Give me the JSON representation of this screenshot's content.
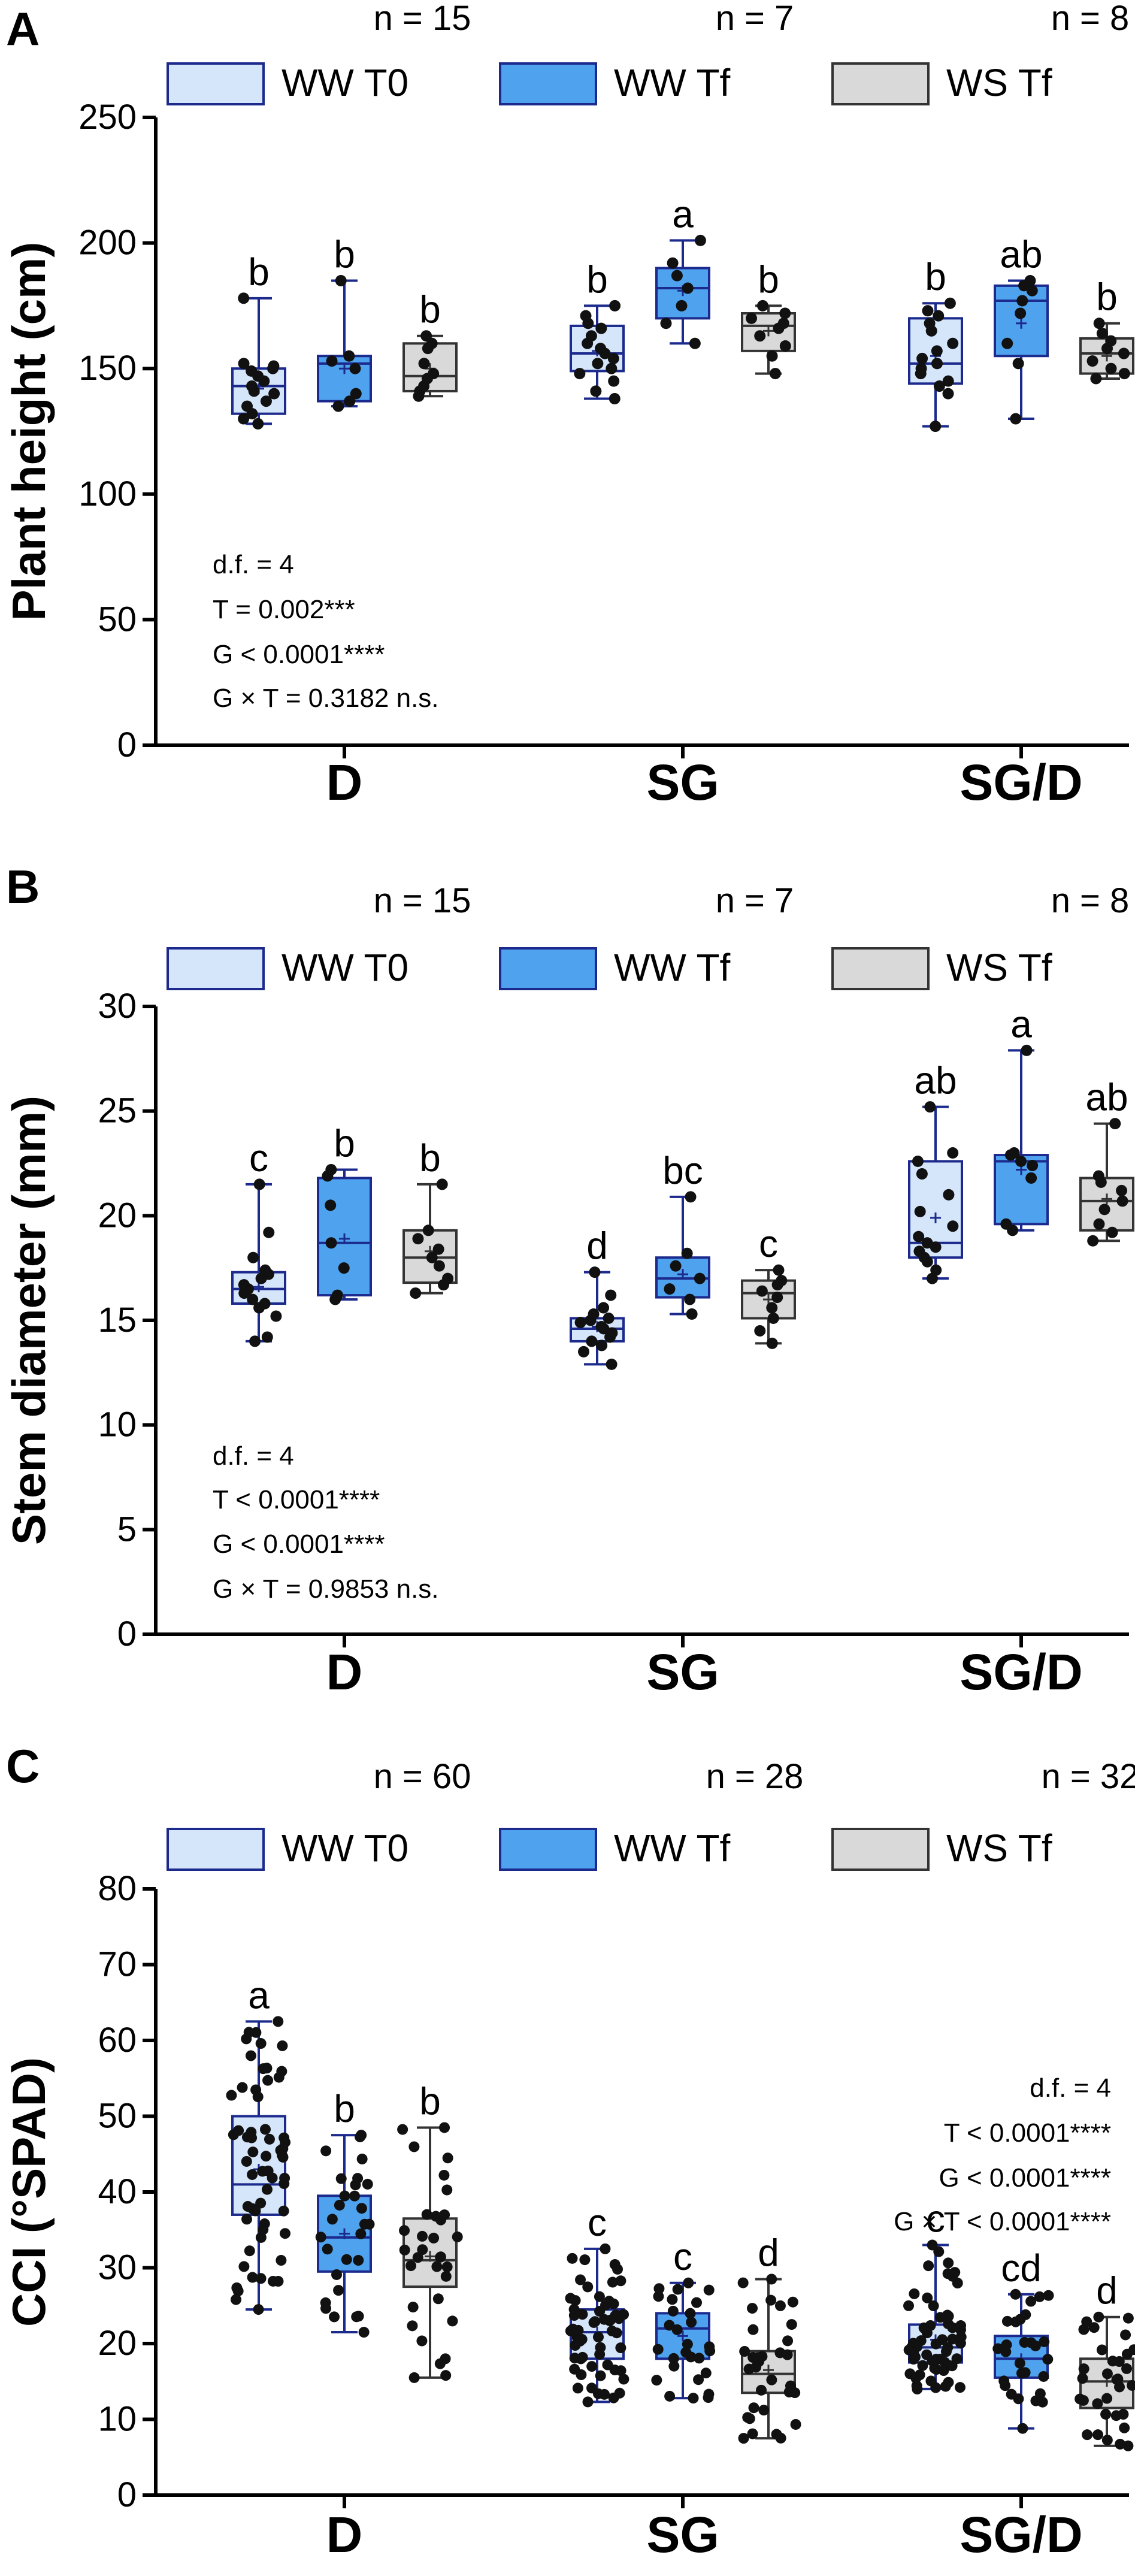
{
  "colors": {
    "ww_t0_fill": "#d6e6fa",
    "ww_tf_fill": "#4fa3ee",
    "ws_tf_fill": "#d9d9d9",
    "box_stroke_blue": "#1b2a8c",
    "box_stroke_gray": "#333333",
    "point": "#111111",
    "axis": "#000000"
  },
  "legend_labels": [
    "WW T0",
    "WW Tf",
    "WS Tf"
  ],
  "chart_data": [
    {
      "type": "box",
      "panel_label": "A",
      "ylabel": "Plant height (cm)",
      "ylim": [
        0,
        250
      ],
      "yticks": [
        0,
        50,
        100,
        150,
        200,
        250
      ],
      "categories": [
        "D",
        "SG",
        "SG/D"
      ],
      "n_labels": [
        "n = 15",
        "n = 7",
        "n = 8"
      ],
      "stats": [
        "d.f. = 4",
        "T = 0.002***",
        "G < 0.0001****",
        "G × T = 0.3182 n.s."
      ],
      "stats_align": "left",
      "series": [
        {
          "name": "WW T0",
          "boxes": [
            {
              "min": 128,
              "q1": 132,
              "median": 143,
              "q3": 150,
              "max": 178,
              "mean": 142,
              "letter": "b",
              "points": [
                128,
                130,
                132,
                135,
                137,
                140,
                141,
                143,
                145,
                147,
                149,
                150,
                151,
                152,
                178
              ]
            },
            {
              "min": 138,
              "q1": 149,
              "median": 156,
              "q3": 167,
              "max": 175,
              "mean": 157,
              "letter": "b",
              "points": [
                138,
                141,
                145,
                148,
                150,
                152,
                154,
                156,
                158,
                160,
                163,
                166,
                168,
                171,
                175
              ]
            },
            {
              "min": 127,
              "q1": 144,
              "median": 152,
              "q3": 170,
              "max": 176,
              "mean": 155,
              "letter": "b",
              "points": [
                127,
                140,
                143,
                145,
                148,
                150,
                152,
                154,
                157,
                160,
                165,
                168,
                171,
                173,
                176
              ]
            }
          ]
        },
        {
          "name": "WW Tf",
          "boxes": [
            {
              "min": 135,
              "q1": 137,
              "median": 152,
              "q3": 155,
              "max": 185,
              "mean": 150,
              "letter": "b",
              "points": [
                135,
                137,
                140,
                150,
                153,
                155,
                185
              ]
            },
            {
              "min": 160,
              "q1": 170,
              "median": 182,
              "q3": 190,
              "max": 201,
              "mean": 181,
              "letter": "a",
              "points": [
                160,
                168,
                175,
                182,
                187,
                192,
                201
              ]
            },
            {
              "min": 130,
              "q1": 155,
              "median": 177,
              "q3": 183,
              "max": 185,
              "mean": 168,
              "letter": "ab",
              "points": [
                130,
                152,
                160,
                172,
                177,
                181,
                183,
                185
              ]
            }
          ]
        },
        {
          "name": "WS Tf",
          "boxes": [
            {
              "min": 139,
              "q1": 141,
              "median": 147,
              "q3": 160,
              "max": 163,
              "mean": 150,
              "letter": "b",
              "points": [
                139,
                141,
                143,
                146,
                148,
                152,
                158,
                160,
                163
              ]
            },
            {
              "min": 148,
              "q1": 157,
              "median": 167,
              "q3": 172,
              "max": 175,
              "mean": 165,
              "letter": "b",
              "points": [
                148,
                155,
                159,
                163,
                166,
                168,
                170,
                172,
                175
              ]
            },
            {
              "min": 146,
              "q1": 148,
              "median": 156,
              "q3": 162,
              "max": 168,
              "mean": 155,
              "letter": "b",
              "points": [
                146,
                148,
                150,
                153,
                156,
                158,
                161,
                164,
                168
              ]
            }
          ]
        }
      ]
    },
    {
      "type": "box",
      "panel_label": "B",
      "ylabel": "Stem diameter (mm)",
      "ylim": [
        0,
        30
      ],
      "yticks": [
        0,
        5,
        10,
        15,
        20,
        25,
        30
      ],
      "categories": [
        "D",
        "SG",
        "SG/D"
      ],
      "n_labels": [
        "n = 15",
        "n = 7",
        "n = 8"
      ],
      "stats": [
        "d.f. = 4",
        "T < 0.0001****",
        "G < 0.0001****",
        "G × T = 0.9853 n.s."
      ],
      "stats_align": "left",
      "series": [
        {
          "name": "WW T0",
          "boxes": [
            {
              "min": 14.0,
              "q1": 15.8,
              "median": 16.5,
              "q3": 17.3,
              "max": 21.5,
              "mean": 16.6,
              "letter": "c",
              "points": [
                14.0,
                14.2,
                15.2,
                15.6,
                15.8,
                16.0,
                16.3,
                16.5,
                16.7,
                17.0,
                17.2,
                17.4,
                18.0,
                19.2,
                21.5
              ]
            },
            {
              "min": 12.9,
              "q1": 14.0,
              "median": 14.6,
              "q3": 15.1,
              "max": 17.3,
              "mean": 14.7,
              "letter": "d",
              "points": [
                12.9,
                13.5,
                13.8,
                14.0,
                14.2,
                14.4,
                14.6,
                14.7,
                14.9,
                15.0,
                15.1,
                15.3,
                15.6,
                16.2,
                17.3
              ]
            },
            {
              "min": 17.0,
              "q1": 18.0,
              "median": 18.7,
              "q3": 22.6,
              "max": 25.2,
              "mean": 19.9,
              "letter": "ab",
              "points": [
                17.0,
                17.4,
                17.8,
                18.0,
                18.3,
                18.5,
                18.7,
                19.0,
                19.5,
                20.2,
                21.0,
                22.0,
                22.6,
                23.0,
                25.2
              ]
            }
          ]
        },
        {
          "name": "WW Tf",
          "boxes": [
            {
              "min": 16.0,
              "q1": 16.2,
              "median": 18.7,
              "q3": 21.8,
              "max": 22.2,
              "mean": 18.9,
              "letter": "b",
              "points": [
                16.0,
                16.2,
                17.5,
                18.7,
                20.5,
                21.9,
                22.2
              ]
            },
            {
              "min": 15.3,
              "q1": 16.1,
              "median": 17.0,
              "q3": 18.0,
              "max": 20.9,
              "mean": 17.2,
              "letter": "bc",
              "points": [
                15.3,
                16.0,
                16.5,
                17.0,
                17.6,
                18.2,
                20.9
              ]
            },
            {
              "min": 19.3,
              "q1": 19.6,
              "median": 22.6,
              "q3": 22.9,
              "max": 27.9,
              "mean": 22.2,
              "letter": "a",
              "points": [
                19.3,
                19.6,
                21.8,
                22.4,
                22.6,
                22.9,
                23.0,
                27.9
              ]
            }
          ]
        },
        {
          "name": "WS Tf",
          "boxes": [
            {
              "min": 16.3,
              "q1": 16.8,
              "median": 18.0,
              "q3": 19.3,
              "max": 21.5,
              "mean": 18.3,
              "letter": "b",
              "points": [
                16.3,
                16.7,
                17.0,
                17.6,
                18.0,
                18.4,
                18.9,
                19.3,
                21.5
              ]
            },
            {
              "min": 13.9,
              "q1": 15.1,
              "median": 16.3,
              "q3": 16.9,
              "max": 17.4,
              "mean": 16.0,
              "letter": "c",
              "points": [
                13.9,
                14.5,
                15.1,
                15.6,
                16.1,
                16.4,
                16.7,
                16.9,
                17.4
              ]
            },
            {
              "min": 18.8,
              "q1": 19.3,
              "median": 20.7,
              "q3": 21.8,
              "max": 24.4,
              "mean": 20.8,
              "letter": "ab",
              "points": [
                18.8,
                19.2,
                19.6,
                20.3,
                20.7,
                21.2,
                21.6,
                21.9,
                24.4
              ]
            }
          ]
        }
      ]
    },
    {
      "type": "box",
      "panel_label": "C",
      "ylabel": "CCI (°SPAD)",
      "ylim": [
        0,
        80
      ],
      "yticks": [
        0,
        10,
        20,
        30,
        40,
        50,
        60,
        70,
        80
      ],
      "categories": [
        "D",
        "SG",
        "SG/D"
      ],
      "n_labels": [
        "n = 60",
        "n = 28",
        "n = 32"
      ],
      "stats": [
        "d.f. = 4",
        "T < 0.0001****",
        "G  < 0.0001****",
        "G × T < 0.0001****"
      ],
      "stats_align": "right",
      "series": [
        {
          "name": "WW T0",
          "boxes": [
            {
              "min": 24.5,
              "q1": 37,
              "median": 41,
              "q3": 50,
              "max": 62.5,
              "mean": 43,
              "letter": "a",
              "n_points": 60,
              "seed": 11
            },
            {
              "min": 12.3,
              "q1": 18,
              "median": 21.5,
              "q3": 24.5,
              "max": 32.5,
              "mean": 21.5,
              "letter": "c",
              "n_points": 60,
              "seed": 12
            },
            {
              "min": 14.0,
              "q1": 17.5,
              "median": 19.5,
              "q3": 22.5,
              "max": 33.0,
              "mean": 20.5,
              "letter": "c",
              "n_points": 60,
              "seed": 13
            }
          ]
        },
        {
          "name": "WW Tf",
          "boxes": [
            {
              "min": 21.5,
              "q1": 29.5,
              "median": 34,
              "q3": 39.5,
              "max": 47.5,
              "mean": 34.5,
              "letter": "b",
              "n_points": 28,
              "seed": 21
            },
            {
              "min": 12.8,
              "q1": 18,
              "median": 22,
              "q3": 24,
              "max": 28,
              "mean": 21,
              "letter": "c",
              "n_points": 28,
              "seed": 22
            },
            {
              "min": 8.8,
              "q1": 15.5,
              "median": 18,
              "q3": 21,
              "max": 26.5,
              "mean": 18,
              "letter": "cd",
              "n_points": 28,
              "seed": 23
            }
          ]
        },
        {
          "name": "WS Tf",
          "boxes": [
            {
              "min": 15.5,
              "q1": 27.5,
              "median": 31,
              "q3": 36.5,
              "max": 48.5,
              "mean": 31.5,
              "letter": "b",
              "n_points": 32,
              "seed": 31
            },
            {
              "min": 7.5,
              "q1": 13.5,
              "median": 16,
              "q3": 19,
              "max": 28.5,
              "mean": 16.5,
              "letter": "d",
              "n_points": 32,
              "seed": 32
            },
            {
              "min": 6.5,
              "q1": 11.5,
              "median": 15,
              "q3": 18,
              "max": 23.5,
              "mean": 15,
              "letter": "d",
              "n_points": 32,
              "seed": 33
            }
          ]
        }
      ]
    }
  ]
}
